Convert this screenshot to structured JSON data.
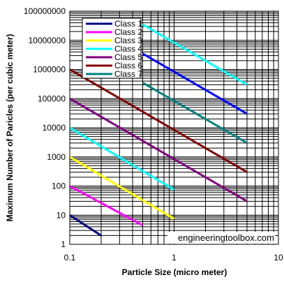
{
  "chart_data": {
    "type": "line",
    "title": "",
    "xlabel": "Particle Size (micro meter)",
    "ylabel": "Maximum Number of Paricles (per cubic meter)",
    "x_scale": "log",
    "y_scale": "log",
    "xlim": [
      0.1,
      10
    ],
    "ylim": [
      1,
      100000000
    ],
    "grid": true,
    "legend_position": "top-left",
    "x_ticks": [
      "0.1",
      "1",
      "10"
    ],
    "y_ticks": [
      "1",
      "10",
      "100",
      "1000",
      "10000",
      "100000",
      "1000000",
      "10000000",
      "100000000"
    ],
    "watermark": "engineeringtoolbox.com",
    "series": [
      {
        "name": "Class 1",
        "color": "#000080",
        "x": [
          0.1,
          0.2
        ],
        "y": [
          10,
          2
        ]
      },
      {
        "name": "Class 2",
        "color": "#ff00ff",
        "x": [
          0.1,
          0.5
        ],
        "y": [
          100,
          4.5
        ]
      },
      {
        "name": "Class 3",
        "color": "#ffff00",
        "x": [
          0.1,
          1
        ],
        "y": [
          1000,
          7.5
        ]
      },
      {
        "name": "Class 4",
        "color": "#00ffff",
        "x": [
          0.1,
          1
        ],
        "y": [
          10000,
          75
        ]
      },
      {
        "name": "Class 5",
        "color": "#800080",
        "x": [
          0.1,
          5
        ],
        "y": [
          100000,
          30
        ]
      },
      {
        "name": "Class 6",
        "color": "#800000",
        "x": [
          0.1,
          5
        ],
        "y": [
          1000000,
          300
        ]
      },
      {
        "name": "Class 7",
        "color": "#008080",
        "x": [
          0.5,
          5
        ],
        "y": [
          350000,
          3000
        ]
      },
      {
        "name": "",
        "color": "#00ffff",
        "x": [
          0.5,
          5
        ],
        "y": [
          35000000,
          300000
        ]
      },
      {
        "name": "",
        "color": "#0000ff",
        "x": [
          0.5,
          5
        ],
        "y": [
          3500000,
          30000
        ]
      }
    ]
  }
}
